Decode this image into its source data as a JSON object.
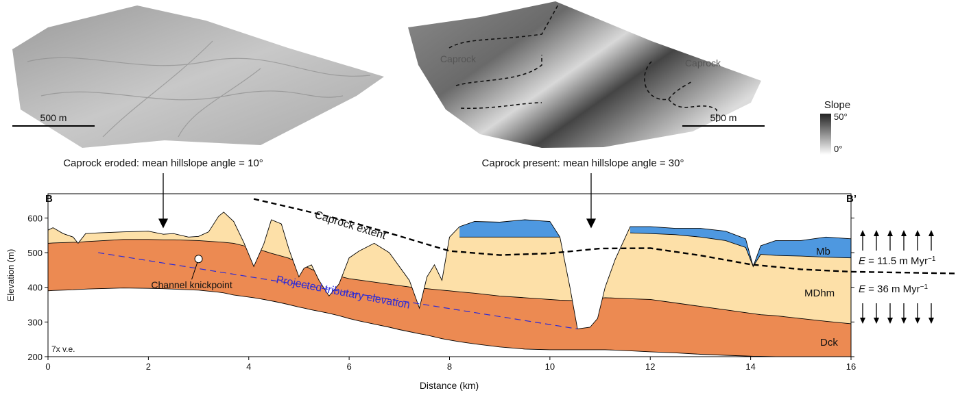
{
  "panels": [
    {
      "caption": "Caprock eroded: mean hillslope angle = 10°",
      "scale": "500 m"
    },
    {
      "caption": "Caprock present: mean hillslope angle = 30°",
      "scale": "500 m",
      "labels": [
        "Caprock",
        "Caprock"
      ]
    }
  ],
  "slope_legend": {
    "title": "Slope",
    "max": "50°",
    "min": "0°"
  },
  "chart_data": {
    "type": "cross-section",
    "start": "B",
    "end": "B’",
    "xlabel": "Distance (km)",
    "ylabel": "Elevation (m)",
    "note": "7x v.e.",
    "xlim": [
      0,
      16
    ],
    "ylim": [
      200,
      670
    ],
    "xticks": [
      0,
      2,
      4,
      6,
      8,
      10,
      12,
      14,
      16
    ],
    "yticks": [
      200,
      300,
      400,
      500,
      600
    ],
    "x": [
      0,
      0.1,
      0.3,
      0.5,
      0.6,
      0.75,
      1,
      1.5,
      2,
      2.3,
      2.5,
      2.8,
      3,
      3.2,
      3.4,
      3.5,
      3.7,
      3.9,
      4.1,
      4.3,
      4.45,
      4.65,
      4.8,
      5,
      5.1,
      5.25,
      5.4,
      5.6,
      5.8,
      6,
      6.2,
      6.5,
      6.8,
      7,
      7.2,
      7.4,
      7.55,
      7.7,
      7.85,
      8,
      8.2,
      8.5,
      9,
      9.5,
      10,
      10.2,
      10.4,
      10.55,
      10.8,
      10.95,
      11.1,
      11.3,
      11.6,
      12,
      12.5,
      13,
      13.5,
      13.9,
      14.05,
      14.2,
      14.5,
      15,
      15.5,
      16
    ],
    "surface": [
      565,
      572,
      555,
      545,
      527,
      555,
      557,
      560,
      562,
      553,
      555,
      545,
      547,
      560,
      605,
      617,
      590,
      530,
      460,
      525,
      595,
      583,
      510,
      430,
      455,
      465,
      420,
      375,
      410,
      485,
      505,
      527,
      500,
      460,
      420,
      340,
      430,
      465,
      420,
      545,
      575,
      590,
      588,
      595,
      590,
      545,
      400,
      280,
      285,
      310,
      400,
      480,
      575,
      575,
      570,
      570,
      562,
      540,
      460,
      520,
      535,
      535,
      545,
      540
    ],
    "mb_base": [
      null,
      null,
      null,
      null,
      null,
      null,
      null,
      null,
      null,
      null,
      null,
      null,
      null,
      null,
      null,
      null,
      null,
      null,
      null,
      null,
      null,
      null,
      null,
      null,
      null,
      null,
      null,
      null,
      null,
      null,
      null,
      null,
      null,
      null,
      null,
      null,
      null,
      null,
      null,
      null,
      545,
      545,
      545,
      545,
      545,
      545,
      null,
      null,
      null,
      null,
      null,
      null,
      557,
      555,
      552,
      545,
      535,
      515,
      460,
      495,
      492,
      490,
      487,
      485
    ],
    "dck_top": [
      527,
      528,
      529,
      530,
      530,
      532,
      534,
      538,
      538,
      537,
      537,
      536,
      535,
      533,
      531,
      530,
      527,
      520,
      513,
      505,
      498,
      490,
      484,
      470,
      463,
      452,
      444,
      437,
      432,
      425,
      421,
      415,
      409,
      405,
      401,
      398,
      396,
      394,
      392,
      390,
      387,
      383,
      375,
      370,
      365,
      363,
      362,
      361,
      364,
      368,
      370,
      369,
      367,
      365,
      355,
      345,
      335,
      327,
      324,
      321,
      318,
      310,
      302,
      295
    ],
    "dck_base": [
      390,
      391,
      392,
      393,
      394,
      395,
      396,
      398,
      397,
      396,
      395,
      393,
      392,
      389,
      386,
      384,
      378,
      374,
      370,
      365,
      361,
      355,
      350,
      343,
      340,
      335,
      331,
      325,
      318,
      310,
      303,
      294,
      285,
      278,
      272,
      266,
      262,
      257,
      252,
      248,
      243,
      237,
      228,
      222,
      220,
      220,
      220,
      220,
      220,
      220,
      220,
      219,
      217,
      214,
      211,
      207,
      204,
      202,
      201,
      201,
      200,
      200,
      200,
      200
    ],
    "layers": [
      {
        "name": "Mb",
        "color": "#4e98e0"
      },
      {
        "name": "MDhm",
        "color": "#fde0a8"
      },
      {
        "name": "Dck",
        "color": "#ec8a52"
      }
    ],
    "caprock_extent": {
      "label": "Caprock extent",
      "x": [
        4.1,
        5,
        6,
        7,
        8,
        9,
        10,
        11,
        12,
        13,
        14,
        15,
        16,
        18.1
      ],
      "y": [
        655,
        625,
        590,
        548,
        505,
        493,
        498,
        512,
        513,
        492,
        466,
        452,
        445,
        440
      ]
    },
    "tributary": {
      "label": "Projected tributary elevation",
      "x": [
        1,
        10.55
      ],
      "y": [
        500,
        280
      ],
      "color": "#2a2ad8"
    },
    "knickpoint": {
      "label": "Channel knickpoint",
      "x": 3.0,
      "y": 482
    },
    "erosion": [
      {
        "symbol": "E",
        "text": " = 11.5 m Myr",
        "sup": "−1"
      },
      {
        "symbol": "E",
        "text": " = 36 m Myr",
        "sup": "−1"
      }
    ]
  }
}
